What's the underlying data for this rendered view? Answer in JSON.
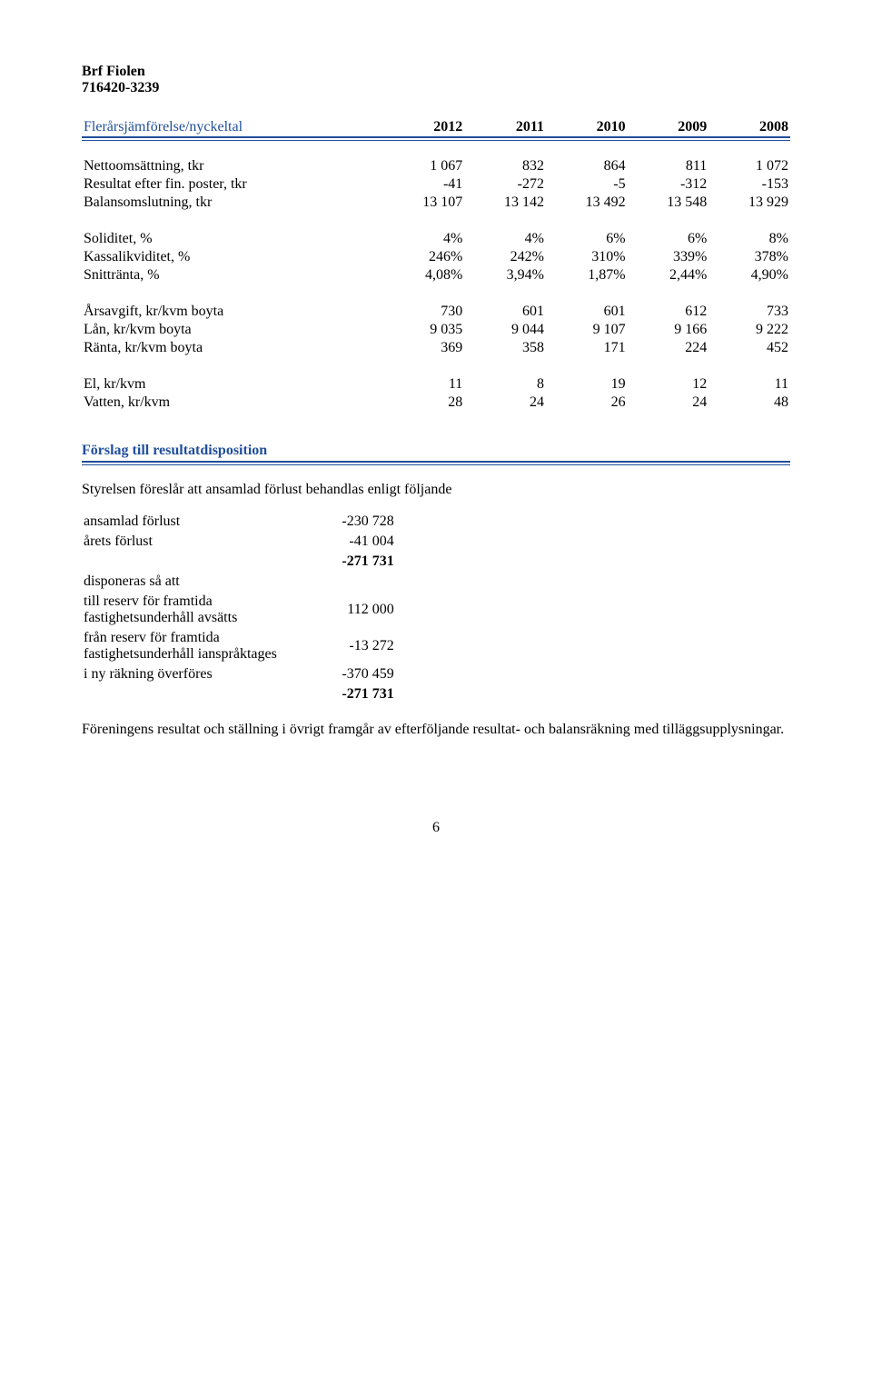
{
  "header": {
    "name": "Brf Fiolen",
    "orgnr": "716420-3239"
  },
  "section1": {
    "title": "Flerårsjämförelse/nyckeltal",
    "years": [
      "2012",
      "2011",
      "2010",
      "2009",
      "2008"
    ],
    "rows": [
      {
        "label": "Nettoomsättning, tkr",
        "v": [
          "1 067",
          "832",
          "864",
          "811",
          "1 072"
        ]
      },
      {
        "label": "Resultat efter fin. poster, tkr",
        "v": [
          "-41",
          "-272",
          "-5",
          "-312",
          "-153"
        ]
      },
      {
        "label": "Balansomslutning, tkr",
        "v": [
          "13 107",
          "13 142",
          "13 492",
          "13 548",
          "13 929"
        ]
      }
    ],
    "rows2": [
      {
        "label": "Soliditet, %",
        "v": [
          "4%",
          "4%",
          "6%",
          "6%",
          "8%"
        ]
      },
      {
        "label": "Kassalikviditet, %",
        "v": [
          "246%",
          "242%",
          "310%",
          "339%",
          "378%"
        ]
      },
      {
        "label": "Snittränta, %",
        "v": [
          "4,08%",
          "3,94%",
          "1,87%",
          "2,44%",
          "4,90%"
        ]
      }
    ],
    "rows3": [
      {
        "label": "Årsavgift, kr/kvm boyta",
        "v": [
          "730",
          "601",
          "601",
          "612",
          "733"
        ]
      },
      {
        "label": "Lån, kr/kvm boyta",
        "v": [
          "9 035",
          "9 044",
          "9 107",
          "9 166",
          "9 222"
        ]
      },
      {
        "label": "Ränta, kr/kvm boyta",
        "v": [
          "369",
          "358",
          "171",
          "224",
          "452"
        ]
      }
    ],
    "rows4": [
      {
        "label": "El, kr/kvm",
        "v": [
          "11",
          "8",
          "19",
          "12",
          "11"
        ]
      },
      {
        "label": "Vatten, kr/kvm",
        "v": [
          "28",
          "24",
          "26",
          "24",
          "48"
        ]
      }
    ]
  },
  "section2": {
    "title": "Förslag till resultatdisposition",
    "intro": "Styrelsen föreslår att ansamlad förlust behandlas enligt följande",
    "rows_top": [
      {
        "label": "ansamlad förlust",
        "val": "-230 728"
      },
      {
        "label": "årets förlust",
        "val": "-41 004"
      }
    ],
    "sum_top": "-271 731",
    "between": "disponeras så att",
    "rows_bot": [
      {
        "label": "till reserv för framtida fastighetsunderhåll avsätts",
        "val": "112 000"
      },
      {
        "label": "från reserv för framtida fastighetsunderhåll ianspråktages",
        "val": "-13 272"
      },
      {
        "label": "i ny räkning överföres",
        "val": "-370 459"
      }
    ],
    "sum_bot": "-271 731",
    "outro": "Föreningens resultat och ställning i övrigt framgår av efterföljande resultat- och balansräkning med tilläggsupplysningar."
  },
  "page": "6"
}
